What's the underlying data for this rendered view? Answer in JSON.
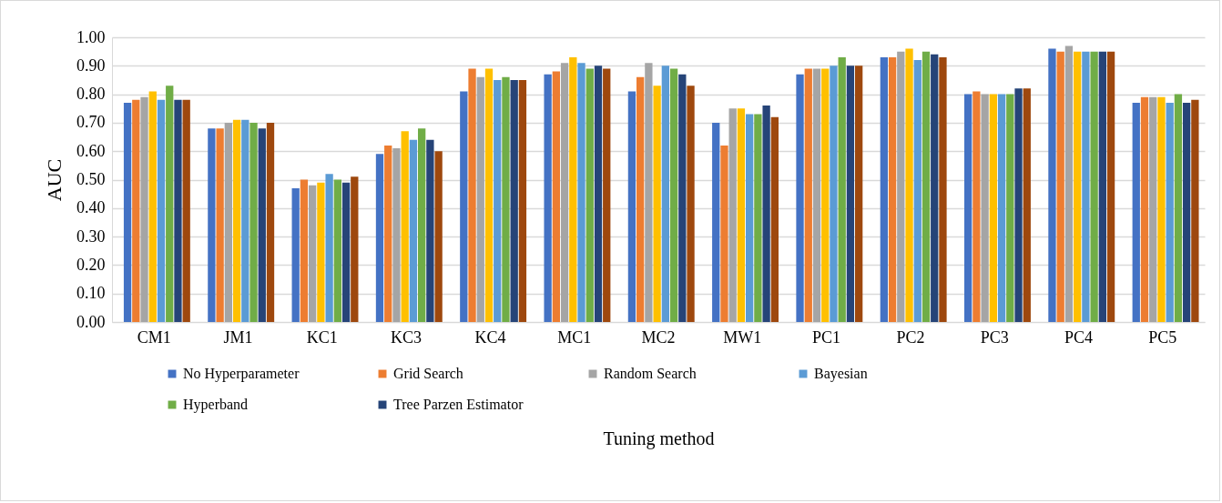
{
  "chart_data": {
    "type": "bar",
    "xlabel": "Tuning method",
    "ylabel": "AUC",
    "categories": [
      "CM1",
      "JM1",
      "KC1",
      "KC3",
      "KC4",
      "MC1",
      "MC2",
      "MW1",
      "PC1",
      "PC2",
      "PC3",
      "PC4",
      "PC5"
    ],
    "series": [
      {
        "name": "No Hyperparameter",
        "color": "#4472c4",
        "values": [
          0.77,
          0.68,
          0.47,
          0.59,
          0.81,
          0.87,
          0.81,
          0.7,
          0.87,
          0.93,
          0.8,
          0.96,
          0.77
        ]
      },
      {
        "name": "Grid Search",
        "color": "#ed7d31",
        "values": [
          0.78,
          0.68,
          0.5,
          0.62,
          0.89,
          0.88,
          0.86,
          0.62,
          0.89,
          0.93,
          0.81,
          0.95,
          0.79
        ]
      },
      {
        "name": "Random Search",
        "color": "#a5a5a5",
        "values": [
          0.79,
          0.7,
          0.48,
          0.61,
          0.86,
          0.91,
          0.91,
          0.75,
          0.89,
          0.95,
          0.8,
          0.97,
          0.79
        ]
      },
      {
        "color": "#ffc000",
        "values": [
          0.81,
          0.71,
          0.49,
          0.67,
          0.89,
          0.93,
          0.83,
          0.75,
          0.89,
          0.96,
          0.8,
          0.95,
          0.79
        ]
      },
      {
        "name": "Bayesian",
        "color": "#5b9bd5",
        "values": [
          0.78,
          0.71,
          0.52,
          0.64,
          0.85,
          0.91,
          0.9,
          0.73,
          0.9,
          0.92,
          0.8,
          0.95,
          0.77
        ]
      },
      {
        "name": "Hyperband",
        "color": "#70ad47",
        "values": [
          0.83,
          0.7,
          0.5,
          0.68,
          0.86,
          0.89,
          0.89,
          0.73,
          0.93,
          0.95,
          0.8,
          0.95,
          0.8
        ]
      },
      {
        "name": "Tree Parzen Estimator",
        "color": "#264478",
        "values": [
          0.78,
          0.68,
          0.49,
          0.64,
          0.85,
          0.9,
          0.87,
          0.76,
          0.9,
          0.94,
          0.82,
          0.95,
          0.77
        ]
      },
      {
        "color": "#9e480e",
        "values": [
          0.78,
          0.7,
          0.51,
          0.6,
          0.85,
          0.89,
          0.83,
          0.72,
          0.9,
          0.93,
          0.82,
          0.95,
          0.78
        ]
      }
    ],
    "ylim": [
      0,
      1
    ],
    "yticks": [
      {
        "value": 0,
        "label": "0.00"
      },
      {
        "value": 0.1,
        "label": "0.10"
      },
      {
        "value": 0.2,
        "label": "0.20"
      },
      {
        "value": 0.3,
        "label": "0.30"
      },
      {
        "value": 0.4,
        "label": "0.40"
      },
      {
        "value": 0.5,
        "label": "0.50"
      },
      {
        "value": 0.6,
        "label": "0.60"
      },
      {
        "value": 0.7,
        "label": "0.70"
      },
      {
        "value": 0.8,
        "label": "0.80"
      },
      {
        "value": 0.9,
        "label": "0.90"
      },
      {
        "value": 1,
        "label": "1.00"
      }
    ],
    "grid": "y",
    "legend": "bottom"
  }
}
